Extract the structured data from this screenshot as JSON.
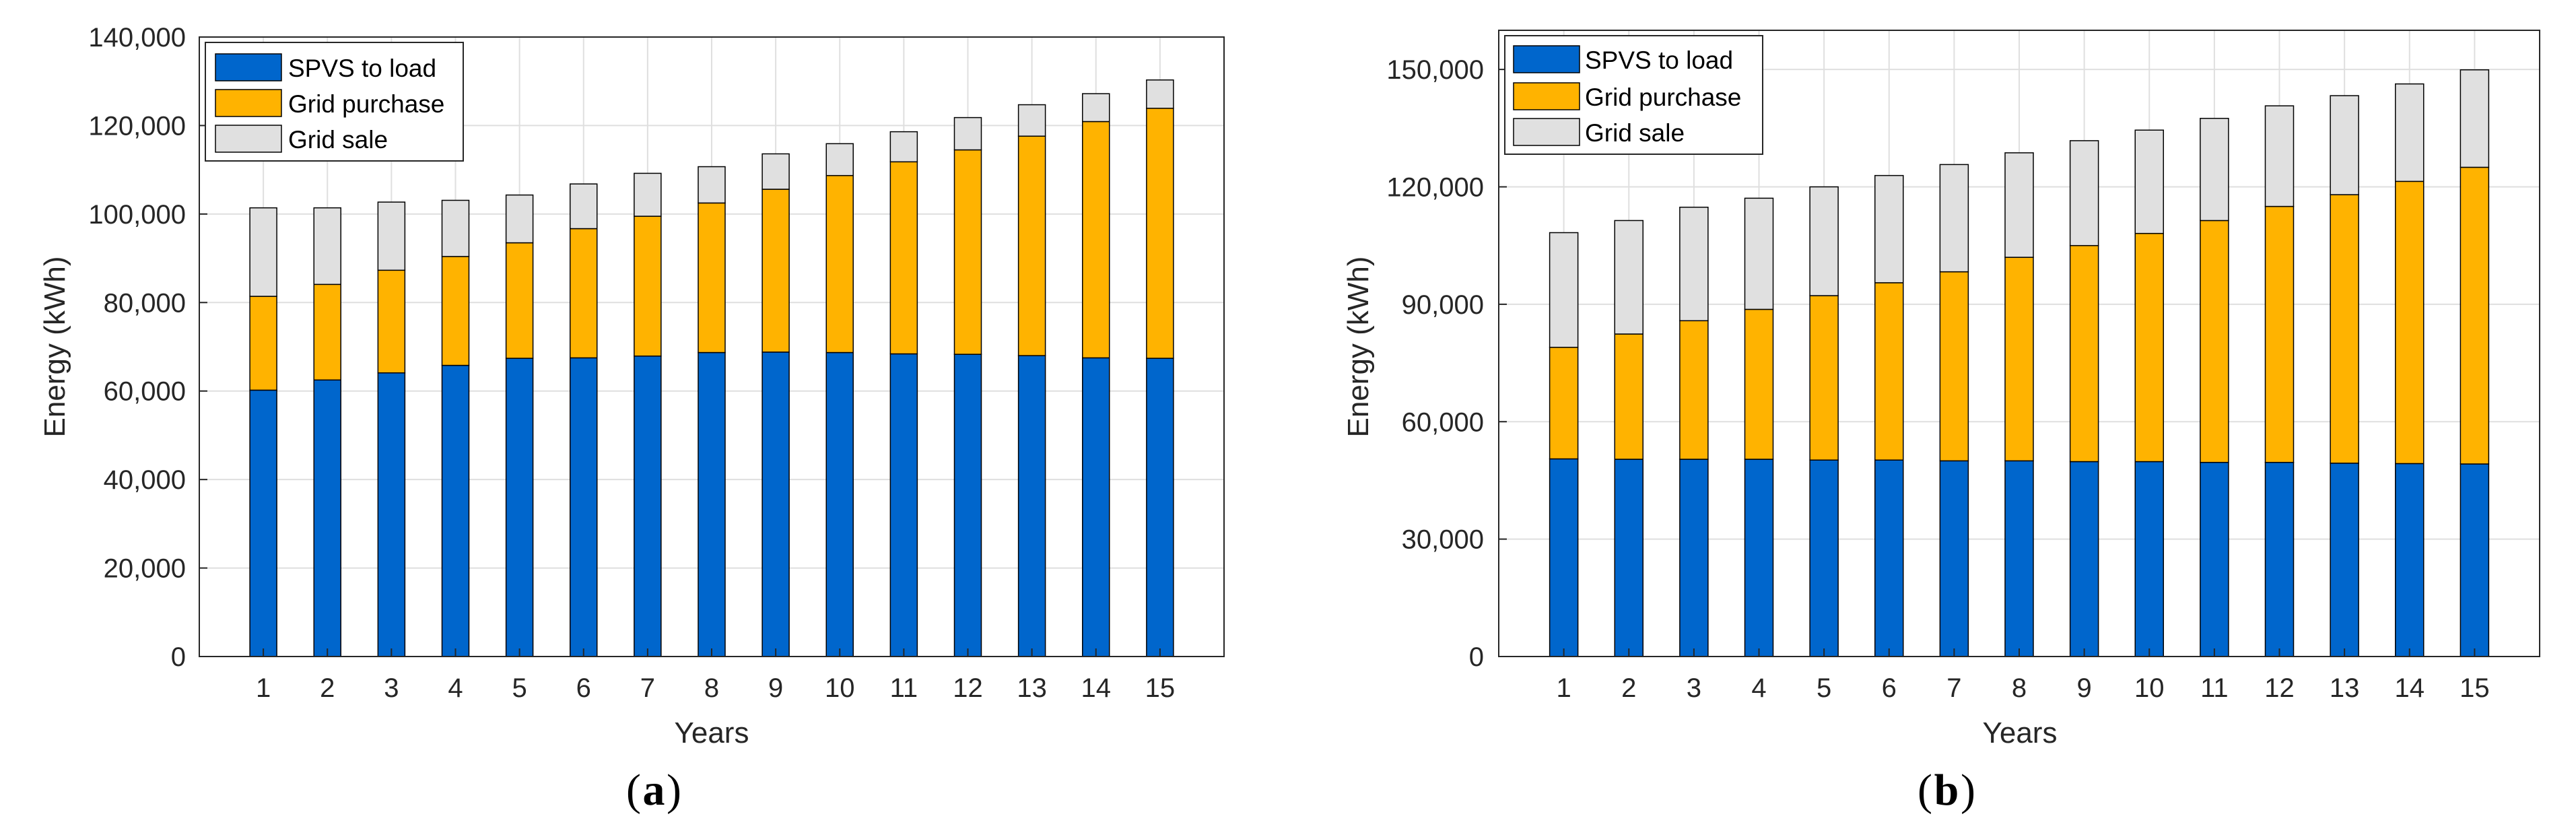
{
  "chart_data": [
    {
      "type": "bar",
      "stacked": true,
      "panel_label": "a",
      "xlabel": "Years",
      "ylabel": "Energy (kWh)",
      "ylim": [
        0,
        140000
      ],
      "yticks": [
        0,
        20000,
        40000,
        60000,
        80000,
        100000,
        120000,
        140000
      ],
      "ytick_labels": [
        "0",
        "20,000",
        "40,000",
        "60,000",
        "80,000",
        "100,000",
        "120,000",
        "140,000"
      ],
      "categories": [
        "1",
        "2",
        "3",
        "4",
        "5",
        "6",
        "7",
        "8",
        "9",
        "10",
        "11",
        "12",
        "13",
        "14",
        "15"
      ],
      "grid": true,
      "legend_position": "top-left",
      "series": [
        {
          "name": "SPVS to load",
          "color": "#0066cc",
          "values": [
            60200,
            62500,
            64100,
            65800,
            67400,
            67500,
            67900,
            68700,
            68800,
            68700,
            68400,
            68300,
            68000,
            67500,
            67400
          ]
        },
        {
          "name": "Grid purchase",
          "color": "#ffb300",
          "values": [
            21200,
            21600,
            23200,
            24600,
            26100,
            29200,
            31600,
            33800,
            36800,
            40000,
            43400,
            46200,
            49600,
            53400,
            56500
          ]
        },
        {
          "name": "Grid sale",
          "color": "#e0e0e0",
          "values": [
            20000,
            17300,
            15400,
            12700,
            10800,
            10100,
            9700,
            8200,
            8000,
            7200,
            6800,
            7300,
            7100,
            6300,
            6400
          ]
        }
      ]
    },
    {
      "type": "bar",
      "stacked": true,
      "panel_label": "b",
      "xlabel": "Years",
      "ylabel": "Energy (kWh)",
      "ylim": [
        0,
        160000
      ],
      "yticks": [
        0,
        30000,
        60000,
        90000,
        120000,
        150000
      ],
      "ytick_labels": [
        "0",
        "30,000",
        "60,000",
        "90,000",
        "120,000",
        "150,000"
      ],
      "categories": [
        "1",
        "2",
        "3",
        "4",
        "5",
        "6",
        "7",
        "8",
        "9",
        "10",
        "11",
        "12",
        "13",
        "14",
        "15"
      ],
      "grid": true,
      "legend_position": "top-left",
      "series": [
        {
          "name": "SPVS to load",
          "color": "#0066cc",
          "values": [
            50500,
            50400,
            50400,
            50400,
            50200,
            50200,
            50000,
            50000,
            49800,
            49800,
            49600,
            49600,
            49400,
            49300,
            49200
          ]
        },
        {
          "name": "Grid purchase",
          "color": "#ffb300",
          "values": [
            28500,
            32000,
            35400,
            38300,
            42000,
            45300,
            48300,
            52000,
            55200,
            58300,
            61800,
            65400,
            68600,
            72100,
            75800
          ]
        },
        {
          "name": "Grid sale",
          "color": "#e0e0e0",
          "values": [
            29300,
            29000,
            29000,
            28400,
            27800,
            27400,
            27400,
            26700,
            26800,
            26400,
            26100,
            25700,
            25300,
            24900,
            24900
          ]
        }
      ]
    }
  ]
}
